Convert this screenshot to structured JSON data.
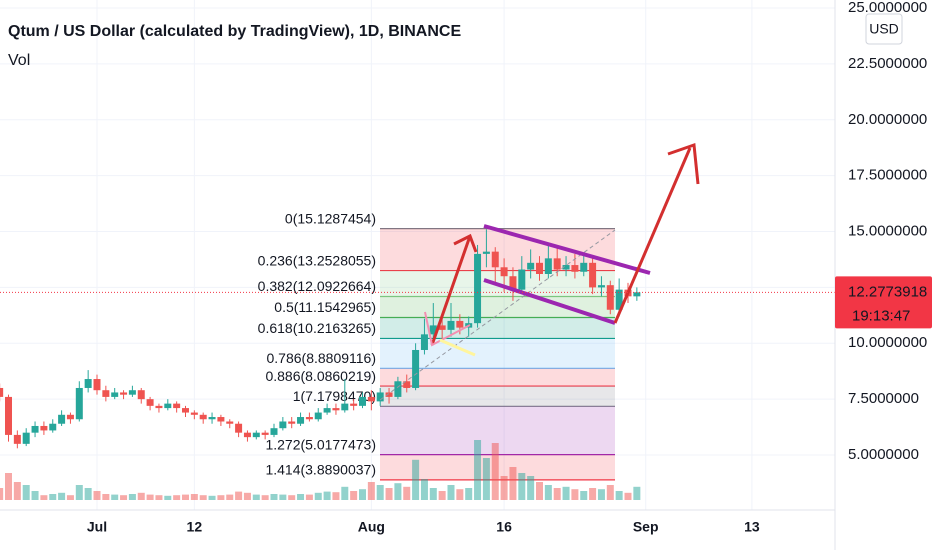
{
  "header": {
    "title": "Qtum / US Dollar (calculated by TradingView), 1D, BINANCE",
    "indicator": "Vol"
  },
  "chart_data": {
    "type": "candlestick",
    "categories": [
      null,
      null,
      null,
      null,
      null,
      null,
      null,
      null,
      null,
      null,
      null,
      "Jul",
      null,
      null,
      null,
      null,
      null,
      null,
      null,
      null,
      null,
      null,
      "12",
      null,
      null,
      null,
      null,
      null,
      null,
      null,
      null,
      null,
      null,
      null,
      null,
      null,
      null,
      null,
      null,
      null,
      null,
      null,
      "Aug",
      null,
      null,
      null,
      null,
      null,
      null,
      null,
      null,
      null,
      null,
      null,
      null,
      null,
      null,
      "16",
      null,
      null,
      null,
      null,
      null,
      null,
      null,
      null,
      null,
      null,
      null,
      null,
      null,
      null,
      null,
      "Sep",
      null,
      null,
      null,
      null,
      null,
      null,
      null,
      null,
      null,
      null,
      null,
      "13",
      null,
      null,
      null,
      null,
      null,
      null,
      null,
      null,
      null
    ],
    "open": [
      8.0,
      7.6,
      5.9,
      5.5,
      6.0,
      6.3,
      6.1,
      6.4,
      6.8,
      6.6,
      8.0,
      8.4,
      7.9,
      7.6,
      7.8,
      7.7,
      7.9,
      7.5,
      7.2,
      7.1,
      7.3,
      7.1,
      6.9,
      6.8,
      6.6,
      6.7,
      6.5,
      6.4,
      6.0,
      5.8,
      6.0,
      5.9,
      6.2,
      6.5,
      6.4,
      6.7,
      6.6,
      6.9,
      7.1,
      7.0,
      7.3,
      7.2,
      7.6,
      7.4,
      7.8,
      7.6,
      8.3,
      8.0,
      9.7,
      10.4,
      10.8,
      10.6,
      11.0,
      10.7,
      10.9,
      14.0,
      14.1,
      13.4,
      13.0,
      12.4,
      13.3,
      13.6,
      13.1,
      13.8,
      13.3,
      13.5,
      13.2,
      13.6,
      12.5,
      12.6,
      11.5,
      12.4,
      12.1,
      null,
      null,
      null,
      null,
      null,
      null,
      null,
      null,
      null,
      null,
      null,
      null,
      null,
      null,
      null,
      null,
      null,
      null,
      null,
      null,
      null,
      null
    ],
    "high": [
      8.2,
      7.7,
      6.1,
      6.2,
      6.5,
      6.5,
      6.6,
      7.0,
      6.9,
      8.3,
      8.8,
      8.6,
      8.1,
      8.0,
      7.9,
      8.1,
      8.0,
      7.6,
      7.3,
      7.5,
      7.4,
      7.2,
      7.0,
      6.9,
      6.9,
      6.8,
      6.6,
      6.5,
      6.1,
      6.1,
      6.1,
      6.4,
      6.7,
      6.7,
      6.9,
      6.9,
      7.1,
      7.3,
      7.3,
      8.4,
      7.5,
      7.8,
      7.9,
      8.0,
      8.0,
      8.5,
      8.6,
      10.0,
      11.1,
      11.8,
      11.3,
      11.8,
      11.3,
      11.2,
      14.4,
      15.1,
      14.3,
      13.8,
      13.4,
      13.9,
      14.2,
      13.9,
      14.5,
      14.3,
      13.9,
      14.0,
      14.0,
      13.8,
      13.0,
      12.8,
      12.9,
      12.7,
      12.5,
      null,
      null,
      null,
      null,
      null,
      null,
      null,
      null,
      null,
      null,
      null,
      null,
      null,
      null,
      null,
      null,
      null,
      null,
      null,
      null,
      null,
      null
    ],
    "low": [
      7.4,
      5.6,
      5.3,
      5.4,
      5.8,
      5.9,
      6.0,
      6.3,
      6.4,
      6.5,
      7.8,
      7.7,
      7.4,
      7.5,
      7.5,
      7.6,
      7.3,
      7.0,
      6.9,
      7.0,
      6.9,
      6.7,
      6.6,
      6.4,
      6.4,
      6.3,
      6.2,
      5.8,
      5.6,
      5.7,
      5.7,
      5.8,
      6.1,
      6.2,
      6.3,
      6.5,
      6.5,
      6.8,
      6.8,
      6.9,
      7.0,
      7.1,
      7.0,
      7.2,
      7.3,
      7.5,
      7.8,
      7.9,
      9.5,
      10.2,
      10.1,
      10.3,
      10.4,
      10.3,
      10.7,
      13.4,
      12.6,
      12.3,
      11.9,
      12.2,
      12.9,
      12.8,
      12.9,
      13.0,
      13.0,
      12.9,
      13.0,
      12.2,
      12.1,
      11.3,
      11.2,
      11.8,
      11.9,
      null,
      null,
      null,
      null,
      null,
      null,
      null,
      null,
      null,
      null,
      null,
      null,
      null,
      null,
      null,
      null,
      null,
      null,
      null,
      null,
      null,
      null
    ],
    "close": [
      7.6,
      5.9,
      5.5,
      6.0,
      6.3,
      6.1,
      6.4,
      6.8,
      6.6,
      8.0,
      8.4,
      7.9,
      7.6,
      7.8,
      7.7,
      7.9,
      7.5,
      7.2,
      7.1,
      7.3,
      7.1,
      6.9,
      6.8,
      6.6,
      6.7,
      6.5,
      6.4,
      6.0,
      5.8,
      6.0,
      5.9,
      6.2,
      6.5,
      6.4,
      6.7,
      6.6,
      6.9,
      7.1,
      7.0,
      7.3,
      7.2,
      7.6,
      7.4,
      7.8,
      7.6,
      8.3,
      8.0,
      9.7,
      10.4,
      10.8,
      10.6,
      11.0,
      10.7,
      10.9,
      14.0,
      14.1,
      13.4,
      13.0,
      12.4,
      13.3,
      13.6,
      13.1,
      13.8,
      13.3,
      13.5,
      13.2,
      13.6,
      12.5,
      12.6,
      11.5,
      12.4,
      12.1,
      12.28,
      null,
      null,
      null,
      null,
      null,
      null,
      null,
      null,
      null,
      null,
      null,
      null,
      null,
      null,
      null,
      null,
      null,
      null,
      null,
      null,
      null,
      null
    ],
    "volume": [
      20,
      45,
      30,
      25,
      15,
      8,
      10,
      12,
      8,
      25,
      20,
      15,
      10,
      9,
      8,
      10,
      12,
      9,
      8,
      7,
      8,
      9,
      10,
      8,
      7,
      8,
      9,
      14,
      12,
      9,
      8,
      10,
      9,
      8,
      10,
      9,
      12,
      14,
      13,
      22,
      15,
      18,
      30,
      25,
      20,
      28,
      22,
      67,
      35,
      20,
      15,
      25,
      18,
      20,
      100,
      70,
      95,
      40,
      55,
      45,
      40,
      30,
      25,
      20,
      22,
      18,
      15,
      20,
      18,
      25,
      15,
      12,
      22,
      null,
      null,
      null,
      null,
      null,
      null,
      null,
      null,
      null,
      null,
      null,
      null,
      null,
      null,
      null,
      null,
      null,
      null,
      null,
      null,
      null,
      null
    ],
    "up_color": "#26a69a",
    "down_color": "#ef5350",
    "ylim": [
      2.54,
      25.36
    ],
    "yticks": [
      {
        "value": 5,
        "label": "5.0000000"
      },
      {
        "value": 7.5,
        "label": "7.5000000"
      },
      {
        "value": 10,
        "label": "10.0000000"
      },
      {
        "value": 12.5,
        "label": "12.5000000"
      },
      {
        "value": 15,
        "label": "15.0000000"
      },
      {
        "value": 17.5,
        "label": "17.5000000"
      },
      {
        "value": 20,
        "label": "20.0000000"
      },
      {
        "value": 22.5,
        "label": "22.5000000"
      },
      {
        "value": 25,
        "label": "25.0000000"
      }
    ],
    "currency": "USD",
    "last_price": 12.2773918,
    "countdown": "19:13:47",
    "fib_levels": [
      {
        "label": "0(15.1287454)",
        "value": 15.1287454,
        "color": "#787b86"
      },
      {
        "label": "0.236(13.2528055)",
        "value": 13.2528055,
        "color": "#f23645"
      },
      {
        "label": "0.382(12.0922664)",
        "value": 12.0922664,
        "color": "#81c784"
      },
      {
        "label": "0.5(11.1542965)",
        "value": 11.1542965,
        "color": "#4caf50"
      },
      {
        "label": "0.618(10.2163265)",
        "value": 10.2163265,
        "color": "#089981"
      },
      {
        "label": "0.786(8.8809116)",
        "value": 8.8809116,
        "color": "#64b5f6"
      },
      {
        "label": "0.886(8.0860219)",
        "value": 8.0860219,
        "color": "#f23645"
      },
      {
        "label": "1(7.1798470)",
        "value": 7.179847,
        "color": "#787b86"
      },
      {
        "label": "1.272(5.0177473)",
        "value": 5.0177473,
        "color": "#9c27b0"
      },
      {
        "label": "1.414(3.8890037)",
        "value": 3.8890037,
        "color": "#f23645"
      }
    ]
  }
}
